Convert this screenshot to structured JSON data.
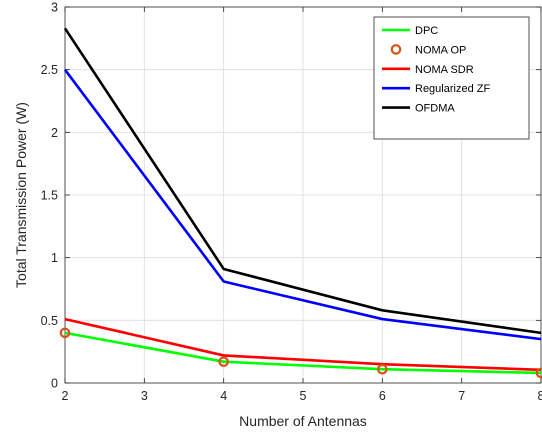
{
  "chart_data": {
    "type": "line",
    "xlabel": "Number of Antennas",
    "ylabel": "Total Transmission Power (W)",
    "xlim": [
      2,
      8
    ],
    "ylim": [
      0,
      3
    ],
    "xticks": [
      "2",
      "3",
      "4",
      "5",
      "6",
      "7",
      "8"
    ],
    "yticks": [
      "0",
      "0.5",
      "1",
      "1.5",
      "2",
      "2.5",
      "3"
    ],
    "grid": true,
    "legend_position": "top-right",
    "x": [
      2,
      4,
      6,
      8
    ],
    "series": [
      {
        "name": "DPC",
        "values": [
          0.4,
          0.17,
          0.11,
          0.08
        ],
        "color": "#00ff00",
        "style": "line"
      },
      {
        "name": "NOMA OP",
        "values": [
          0.4,
          0.17,
          0.11,
          0.08
        ],
        "color": "#d95319",
        "style": "marker"
      },
      {
        "name": "NOMA SDR",
        "values": [
          0.51,
          0.22,
          0.15,
          0.105
        ],
        "color": "#ff0000",
        "style": "line"
      },
      {
        "name": "Regularized ZF",
        "values": [
          2.5,
          0.81,
          0.51,
          0.35
        ],
        "color": "#0000ff",
        "style": "line"
      },
      {
        "name": "OFDMA",
        "values": [
          2.83,
          0.91,
          0.58,
          0.4
        ],
        "color": "#000000",
        "style": "line"
      }
    ]
  }
}
